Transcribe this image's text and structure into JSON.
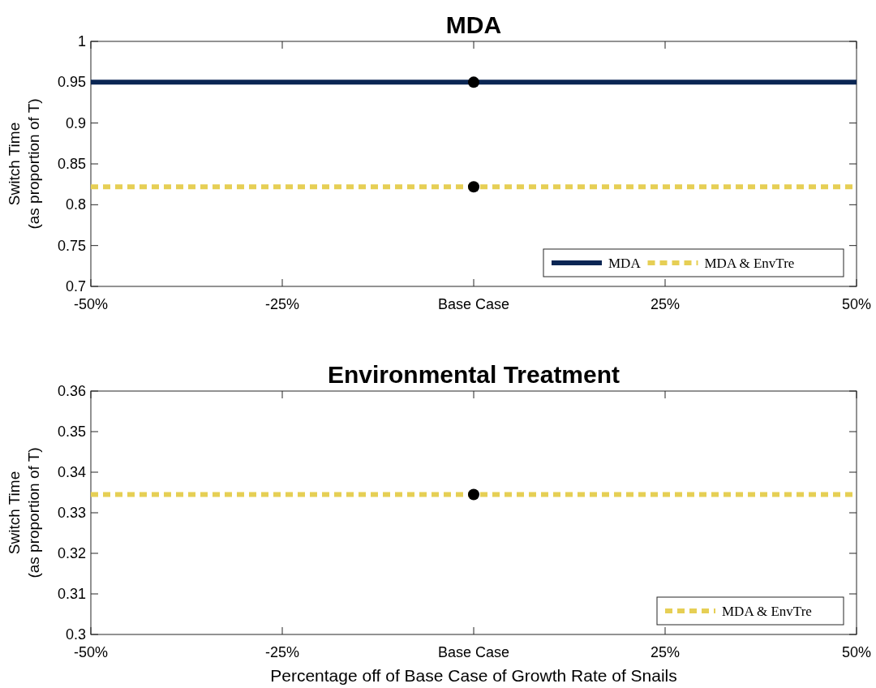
{
  "chart_data": [
    {
      "type": "line",
      "title": "MDA",
      "ylabel": "Switch Time\n(as proportion of T)",
      "xlim": [
        -50,
        50
      ],
      "xticks": [
        {
          "value": -50,
          "label": "-50%"
        },
        {
          "value": -25,
          "label": "-25%"
        },
        {
          "value": 0,
          "label": "Base Case"
        },
        {
          "value": 25,
          "label": "25%"
        },
        {
          "value": 50,
          "label": "50%"
        }
      ],
      "ylim": [
        0.7,
        1
      ],
      "yticks": [
        0.7,
        0.75,
        0.8,
        0.85,
        0.9,
        0.95,
        1
      ],
      "legend": "bottom right",
      "grid": false,
      "series": [
        {
          "name": "MDA",
          "color": "#0b2654",
          "x": [
            -50,
            50
          ],
          "values": [
            0.95,
            0.95
          ],
          "line_style": "solid"
        },
        {
          "name": "MDA & EnvTre",
          "color": "#e6cf55",
          "x": [
            -50,
            50
          ],
          "values": [
            0.822,
            0.822
          ],
          "line_style": "dashed"
        },
        {
          "type": "scatter",
          "color": "#000000",
          "x": [
            0,
            0
          ],
          "values": [
            0.95,
            0.822
          ],
          "marker": "circle"
        }
      ]
    },
    {
      "type": "line",
      "title": "Environmental Treatment",
      "xlabel": "Percentage off of Base Case of Growth Rate of Snails",
      "ylabel": "Switch Time\n(as proportion of T)",
      "xlim": [
        -50,
        50
      ],
      "xticks": [
        {
          "value": -50,
          "label": "-50%"
        },
        {
          "value": -25,
          "label": "-25%"
        },
        {
          "value": 0,
          "label": "Base Case"
        },
        {
          "value": 25,
          "label": "25%"
        },
        {
          "value": 50,
          "label": "50%"
        }
      ],
      "ylim": [
        0.3,
        0.36
      ],
      "yticks": [
        0.3,
        0.31,
        0.32,
        0.33,
        0.34,
        0.35,
        0.36
      ],
      "legend": "bottom right",
      "grid": false,
      "series": [
        {
          "name": "MDA & EnvTre",
          "color": "#e6cf55",
          "x": [
            -50,
            50
          ],
          "values": [
            0.3345,
            0.3345
          ],
          "line_style": "dashed"
        },
        {
          "type": "scatter",
          "color": "#000000",
          "x": [
            0
          ],
          "values": [
            0.3345
          ],
          "marker": "circle"
        }
      ]
    }
  ]
}
